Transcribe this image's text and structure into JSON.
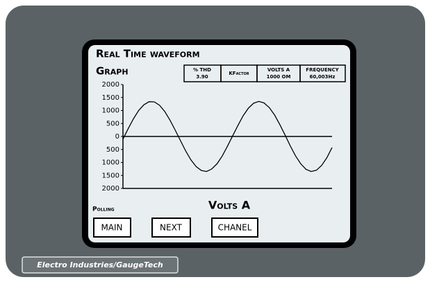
{
  "screen": {
    "title": "Real Time waveform",
    "subtitle": "Graph",
    "readouts": [
      {
        "label": "% THD",
        "value": "3.90"
      },
      {
        "label": "KFactor"
      },
      {
        "label": "VOLTS A",
        "value": "1000 OM"
      },
      {
        "label": "FREQUENCY",
        "value": "60,003Hz"
      }
    ],
    "status": "Polling",
    "buttons": [
      "MAIN",
      "NEXT",
      "CHANEL"
    ],
    "brand": "Electro Industries/GaugeTech"
  },
  "chart_data": {
    "type": "line",
    "title": "Volts A",
    "color": "#000000",
    "values": [
      -100,
      300,
      680,
      1000,
      1220,
      1340,
      1330,
      1200,
      960,
      630,
      240,
      -160,
      -560,
      -900,
      -1160,
      -1310,
      -1350,
      -1250,
      -1050,
      -750,
      -370,
      30,
      430,
      800,
      1090,
      1280,
      1350,
      1290,
      1110,
      830,
      460,
      60,
      -360,
      -740,
      -1050,
      -1260,
      -1350,
      -1300,
      -1120,
      -820,
      -430
    ],
    "ylim": [
      -2000,
      2000
    ],
    "yticks": [
      2000,
      1500,
      1000,
      500,
      0,
      {
        "value": -500,
        "label": "500"
      },
      {
        "value": -1000,
        "label": "1000"
      },
      {
        "value": -1500,
        "label": "1500"
      },
      {
        "value": -2000,
        "label": "2000"
      }
    ]
  }
}
